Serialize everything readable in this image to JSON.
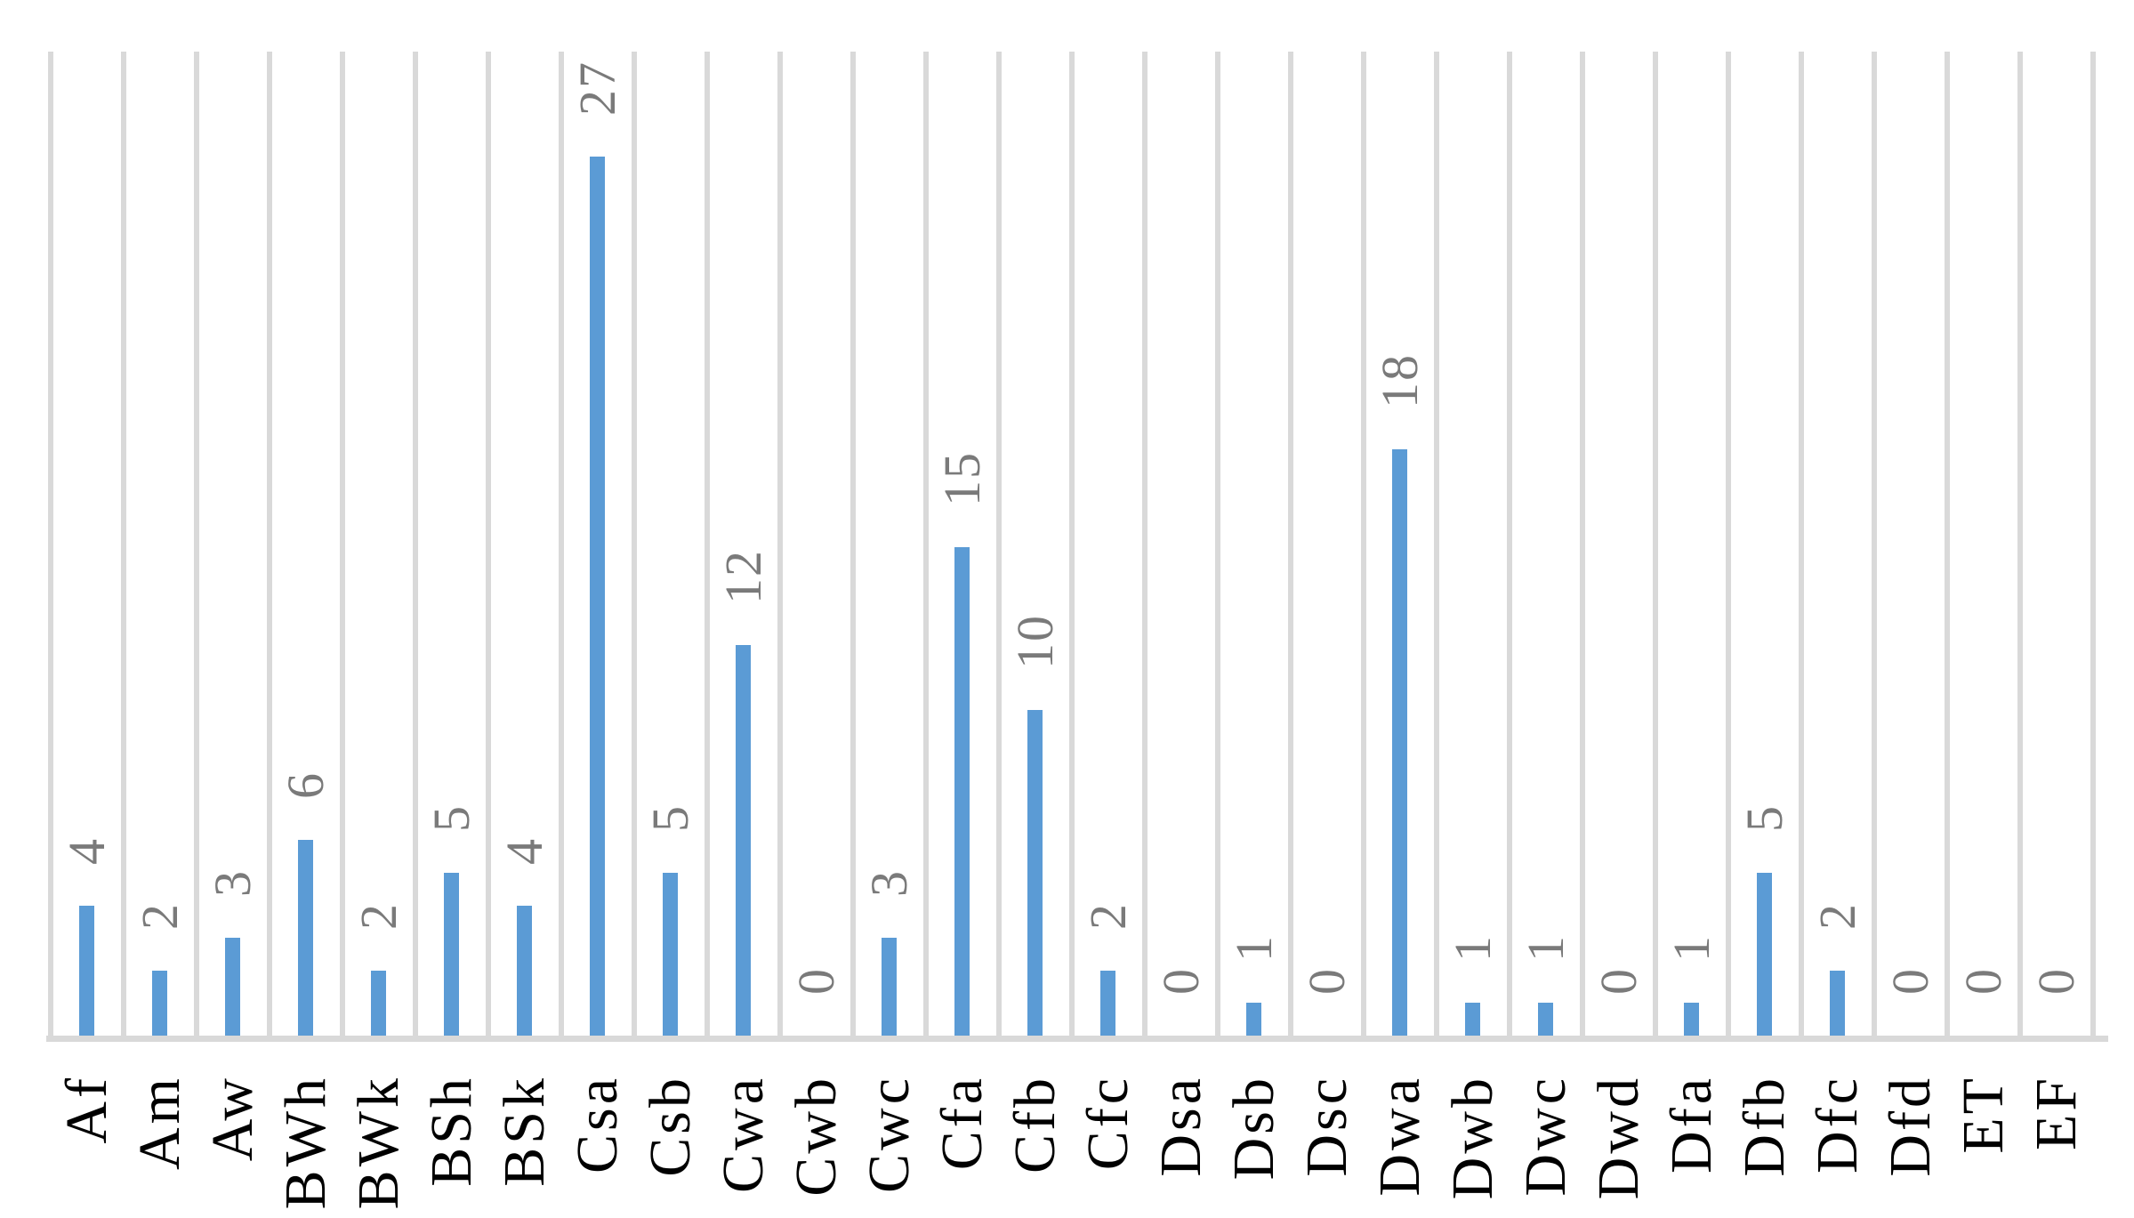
{
  "chart_data": {
    "type": "bar",
    "title": "",
    "categories": [
      "Af",
      "Am",
      "Aw",
      "BWh",
      "BWk",
      "BSh",
      "BSk",
      "Csa",
      "Csb",
      "Cwa",
      "Cwb",
      "Cwc",
      "Cfa",
      "Cfb",
      "Cfc",
      "Dsa",
      "Dsb",
      "Dsc",
      "Dwa",
      "Dwb",
      "Dwc",
      "Dwd",
      "Dfa",
      "Dfb",
      "Dfc",
      "Dfd",
      "ET",
      "EF"
    ],
    "values": [
      4,
      2,
      3,
      6,
      2,
      5,
      4,
      27,
      5,
      12,
      0,
      3,
      15,
      10,
      2,
      0,
      1,
      0,
      18,
      1,
      1,
      0,
      1,
      5,
      2,
      0,
      0,
      0
    ],
    "data_labels": [
      4,
      2,
      3,
      6,
      2,
      5,
      4,
      27,
      5,
      12,
      0,
      3,
      15,
      10,
      2,
      0,
      1,
      0,
      18,
      1,
      1,
      0,
      1,
      5,
      2,
      0,
      0,
      0
    ],
    "xlabel": "",
    "ylabel": "",
    "ylim": [
      0,
      30
    ],
    "legend": "none",
    "grid": "category-boundary-lines-only",
    "text_rotation_deg": -90,
    "bar_color": "#5B9BD5",
    "gridline_color": "#D9D9D9",
    "axis_line_color": "#D9D9D9",
    "value_label_color": "#7A7A7A",
    "category_label_color": "#000000"
  }
}
